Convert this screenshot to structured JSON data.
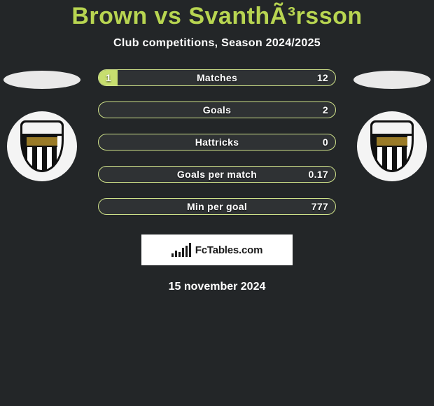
{
  "title_color": "#b8d551",
  "player_left": "Brown",
  "vs": " vs ",
  "player_right": "SvanthÃ³rsson",
  "subtitle": "Club competitions, Season 2024/2025",
  "bar_border_color": "#cfe28a",
  "bar_fill_color": "#c7de6f",
  "bar_track_color": "#2f3234",
  "bars": [
    {
      "label": "Matches",
      "left": "1",
      "right": "12",
      "fill_pct": 8
    },
    {
      "label": "Goals",
      "left": "",
      "right": "2",
      "fill_pct": 0
    },
    {
      "label": "Hattricks",
      "left": "",
      "right": "0",
      "fill_pct": 0
    },
    {
      "label": "Goals per match",
      "left": "",
      "right": "0.17",
      "fill_pct": 0
    },
    {
      "label": "Min per goal",
      "left": "",
      "right": "777",
      "fill_pct": 0
    }
  ],
  "site_logo_text": "FcTables.com",
  "date": "15 november 2024"
}
